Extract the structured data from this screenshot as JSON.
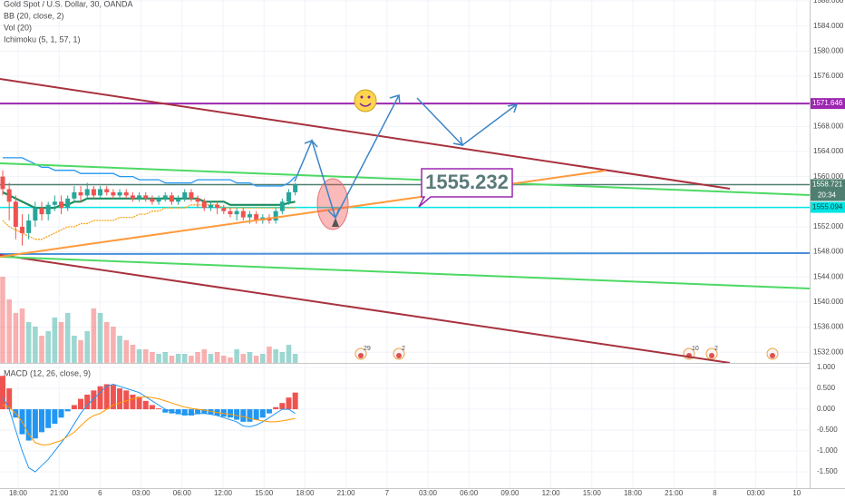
{
  "header": {
    "symbol": "Gold Spot / U.S. Dollar, 30, OANDA",
    "indicators": [
      "BB (20, close, 2)",
      "Vol (20)",
      "Ichimoku (5, 1, 57, 1)"
    ]
  },
  "chart_data": {
    "type": "candlestick",
    "open": [
      1560,
      1558,
      1556,
      1552,
      1551,
      1553,
      1555,
      1554,
      1555.5,
      1556,
      1555,
      1556.5,
      1557.5,
      1557,
      1558,
      1557,
      1558,
      1557.5,
      1557,
      1557.5,
      1557,
      1556.5,
      1557,
      1556.5,
      1556,
      1556.5,
      1557,
      1556,
      1556.5,
      1557.5,
      1556.5,
      1556,
      1555,
      1555.5,
      1555,
      1554.5,
      1554,
      1554.5,
      1553.5,
      1554,
      1553,
      1553.5,
      1553,
      1554.5,
      1556,
      1557.5
    ],
    "high": [
      1561,
      1559,
      1557,
      1554,
      1554,
      1556,
      1556,
      1556,
      1557,
      1557,
      1557,
      1558.5,
      1558.5,
      1559,
      1558.5,
      1558.5,
      1558.5,
      1558,
      1558,
      1558,
      1557.5,
      1557.5,
      1557.5,
      1557,
      1557,
      1557.5,
      1557.5,
      1557,
      1558,
      1558,
      1557,
      1556.5,
      1556,
      1556,
      1555.5,
      1555,
      1555,
      1555,
      1554.5,
      1554.5,
      1554,
      1554,
      1555,
      1556.5,
      1558,
      1559
    ],
    "low": [
      1557,
      1553,
      1550,
      1549,
      1550,
      1552,
      1553,
      1553,
      1554.5,
      1554,
      1554.5,
      1556,
      1556,
      1556.5,
      1556.5,
      1556.5,
      1557,
      1556.5,
      1556.5,
      1556.5,
      1556,
      1556,
      1556,
      1555.5,
      1555.5,
      1556,
      1555.5,
      1555.5,
      1556,
      1556,
      1555,
      1554.5,
      1554.5,
      1554,
      1554,
      1553.5,
      1553,
      1553,
      1552.5,
      1552.5,
      1552.5,
      1552.5,
      1552.5,
      1554,
      1555.5,
      1557
    ],
    "close": [
      1558,
      1556,
      1552,
      1551,
      1553,
      1555,
      1554,
      1555.5,
      1556,
      1555,
      1556.5,
      1557.5,
      1557,
      1558,
      1557,
      1558,
      1557.5,
      1557,
      1557.5,
      1557,
      1556.5,
      1557,
      1556.5,
      1556,
      1556.5,
      1557,
      1556,
      1556.5,
      1557.5,
      1556.5,
      1556,
      1555,
      1555.5,
      1555,
      1554.5,
      1554,
      1554.5,
      1553.5,
      1554,
      1553,
      1553.5,
      1553,
      1554.5,
      1556,
      1557.5,
      1558.7
    ],
    "up_color": "#26a69a",
    "down_color": "#ef5350",
    "ylim": [
      1530.3,
      1588.15
    ],
    "yticks": [
      {
        "value": 1588,
        "label": "1588.000"
      },
      {
        "value": 1584,
        "label": "1584.000"
      },
      {
        "value": 1580,
        "label": "1580.000"
      },
      {
        "value": 1576,
        "label": "1576.000"
      },
      {
        "value": 1568,
        "label": "1568.000"
      },
      {
        "value": 1564,
        "label": "1564.000"
      },
      {
        "value": 1560,
        "label": "1560.000"
      },
      {
        "value": 1552,
        "label": "1552.000"
      },
      {
        "value": 1548,
        "label": "1548.000"
      },
      {
        "value": 1544,
        "label": "1544.000"
      },
      {
        "value": 1540,
        "label": "1540.000"
      },
      {
        "value": 1536,
        "label": "1536.000"
      },
      {
        "value": 1532,
        "label": "1532.000"
      }
    ],
    "price_lines": [
      {
        "value": 1571.646,
        "label": "1571.646",
        "color": "#9c27b0"
      },
      {
        "value": 1558.721,
        "label": "1558.721",
        "color": "#4f7f70"
      },
      {
        "value": 1555.094,
        "label": "1555.094",
        "color": "#00e5e5"
      }
    ],
    "countdown": "20:34",
    "x_labels": [
      "18:00",
      "21:00",
      "6",
      "03:00",
      "06:00",
      "12:00",
      "15:00",
      "18:00",
      "21:00",
      "7",
      "03:00",
      "06:00",
      "09:00",
      "12:00",
      "15:00",
      "18:00",
      "21:00",
      "8",
      "03:00",
      "10"
    ],
    "bb": {
      "upper": [
        1563,
        1563,
        1563,
        1563,
        1562.5,
        1562,
        1561.5,
        1561.5,
        1561,
        1561,
        1561,
        1561,
        1560.5,
        1560.5,
        1560.5,
        1560.5,
        1560.5,
        1560.5,
        1560,
        1560,
        1560,
        1559.5,
        1559.5,
        1559.5,
        1559.5,
        1559,
        1559,
        1559,
        1559,
        1559,
        1559.5,
        1559.5,
        1559.5,
        1559.5,
        1559.5,
        1559.5,
        1559,
        1559,
        1559,
        1558.5,
        1558.5,
        1558.5,
        1558.5,
        1558.5,
        1559,
        1560
      ],
      "basis": [
        1557.5,
        1557,
        1556.5,
        1556,
        1555.5,
        1555,
        1555,
        1555,
        1555,
        1555.5,
        1555.5,
        1556,
        1556,
        1556.5,
        1556.5,
        1556.5,
        1556.5,
        1556.5,
        1556.5,
        1556.5,
        1556.5,
        1556.5,
        1556.5,
        1556.5,
        1556.5,
        1556.5,
        1556.5,
        1556.5,
        1556.5,
        1556.5,
        1556.5,
        1556,
        1556,
        1556,
        1556,
        1555.5,
        1555.5,
        1555.5,
        1555.5,
        1555.5,
        1555.5,
        1555.5,
        1555.5,
        1555.5,
        1555.8,
        1556
      ],
      "lower": [
        1553,
        1552,
        1551.5,
        1551,
        1550.5,
        1550,
        1550,
        1550.5,
        1551,
        1551.5,
        1552,
        1552,
        1552.5,
        1552.5,
        1553,
        1553,
        1553,
        1553,
        1553.5,
        1553.5,
        1553.5,
        1554,
        1554,
        1554.5,
        1554.5,
        1555,
        1555,
        1555,
        1555,
        1555.5,
        1555.5,
        1555.5,
        1555.5,
        1555.5,
        1555,
        1555,
        1555,
        1555,
        1555,
        1555,
        1555,
        1555,
        1555,
        1555,
        1555,
        1555
      ],
      "upper_color": "#2196f3",
      "basis_color": "#1e8c5e",
      "lower_color": "#f5a623"
    },
    "volume": {
      "values": [
        95,
        70,
        55,
        60,
        45,
        40,
        30,
        35,
        50,
        45,
        55,
        30,
        25,
        35,
        60,
        55,
        45,
        40,
        30,
        25,
        20,
        15,
        15,
        12,
        10,
        12,
        8,
        10,
        10,
        8,
        12,
        15,
        10,
        12,
        8,
        6,
        15,
        10,
        12,
        8,
        10,
        18,
        15,
        12,
        20,
        10
      ],
      "ylim": [
        0,
        100
      ]
    },
    "annotation": "1555.232",
    "events": [
      "29",
      "2",
      "10",
      "2"
    ]
  },
  "macd": {
    "title": "MACD (12, 26, close, 9)",
    "histogram": [
      0.8,
      0.5,
      -0.2,
      -0.6,
      -0.75,
      -0.7,
      -0.55,
      -0.45,
      -0.35,
      -0.2,
      -0.05,
      0.1,
      0.25,
      0.35,
      0.45,
      0.55,
      0.6,
      0.58,
      0.5,
      0.45,
      0.35,
      0.3,
      0.2,
      0.1,
      0.02,
      -0.08,
      -0.1,
      -0.12,
      -0.15,
      -0.15,
      -0.12,
      -0.1,
      -0.12,
      -0.15,
      -0.18,
      -0.2,
      -0.25,
      -0.3,
      -0.3,
      -0.25,
      -0.2,
      -0.1,
      0.05,
      0.15,
      0.28,
      0.4
    ],
    "macd": [
      0.3,
      0.0,
      -0.5,
      -1.0,
      -1.4,
      -1.5,
      -1.35,
      -1.2,
      -1.0,
      -0.8,
      -0.6,
      -0.35,
      -0.1,
      0.1,
      0.25,
      0.4,
      0.55,
      0.6,
      0.55,
      0.5,
      0.45,
      0.4,
      0.3,
      0.2,
      0.1,
      0.0,
      -0.05,
      -0.1,
      -0.12,
      -0.12,
      -0.1,
      -0.1,
      -0.12,
      -0.15,
      -0.2,
      -0.25,
      -0.3,
      -0.4,
      -0.42,
      -0.38,
      -0.3,
      -0.2,
      -0.1,
      0.0,
      0.0,
      -0.1
    ],
    "signal": [
      0.1,
      0.05,
      -0.1,
      -0.3,
      -0.6,
      -0.8,
      -0.85,
      -0.85,
      -0.8,
      -0.75,
      -0.65,
      -0.55,
      -0.4,
      -0.25,
      -0.15,
      -0.1,
      0.0,
      0.1,
      0.15,
      0.2,
      0.25,
      0.28,
      0.3,
      0.28,
      0.25,
      0.2,
      0.15,
      0.1,
      0.05,
      0.02,
      0.0,
      -0.02,
      -0.05,
      -0.08,
      -0.1,
      -0.12,
      -0.15,
      -0.18,
      -0.22,
      -0.25,
      -0.28,
      -0.3,
      -0.3,
      -0.28,
      -0.25,
      -0.22
    ],
    "pos_color": "#ef5350",
    "neg_color": "#2196f3",
    "macd_color": "#2196f3",
    "signal_color": "#ff9800",
    "ylim": [
      -1.89,
      1.11
    ],
    "yticks": [
      {
        "value": 1,
        "label": "1.000"
      },
      {
        "value": 0.5,
        "label": "0.500"
      },
      {
        "value": 0,
        "label": "0.000"
      },
      {
        "value": -0.5,
        "label": "-0.500"
      },
      {
        "value": -1,
        "label": "-1.000"
      },
      {
        "value": -1.5,
        "label": "-1.500"
      }
    ]
  }
}
